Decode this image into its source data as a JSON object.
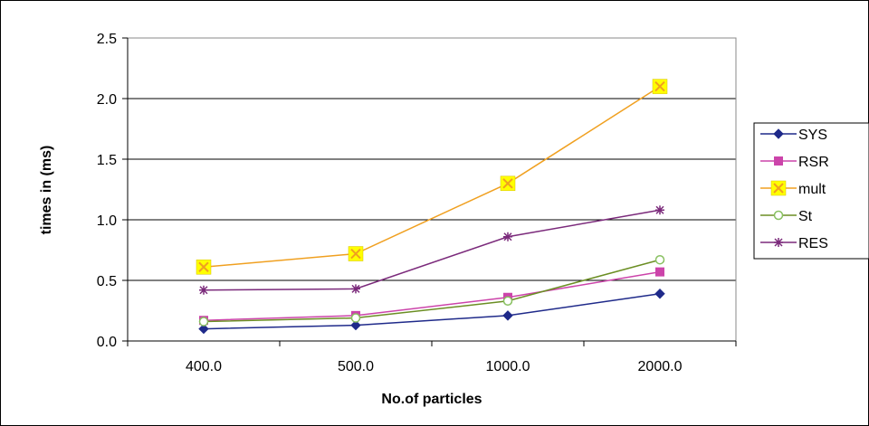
{
  "chart_data": {
    "type": "line",
    "title": "",
    "xlabel": "No.of particles",
    "ylabel": "times in (ms)",
    "categories": [
      "400.0",
      "500.0",
      "1000.0",
      "2000.0"
    ],
    "yticks": [
      "0.0",
      "0.5",
      "1.0",
      "1.5",
      "2.0",
      "2.5"
    ],
    "ylim": [
      0,
      2.5
    ],
    "grid": true,
    "legend": "right",
    "series": [
      {
        "name": "SYS",
        "values": [
          0.1,
          0.13,
          0.21,
          0.39
        ],
        "color": "#1f2a8a",
        "marker": "diamond"
      },
      {
        "name": "RSR",
        "values": [
          0.17,
          0.21,
          0.36,
          0.57
        ],
        "color": "#cc44aa",
        "marker": "square"
      },
      {
        "name": "mult",
        "values": [
          0.61,
          0.72,
          1.3,
          2.1
        ],
        "color": "#f0a020",
        "marker": "x-box"
      },
      {
        "name": "St",
        "values": [
          0.16,
          0.19,
          0.33,
          0.67
        ],
        "color": "#6b8e23",
        "marker": "circle"
      },
      {
        "name": "RES",
        "values": [
          0.42,
          0.43,
          0.86,
          1.08
        ],
        "color": "#7b2a7b",
        "marker": "star"
      }
    ]
  }
}
